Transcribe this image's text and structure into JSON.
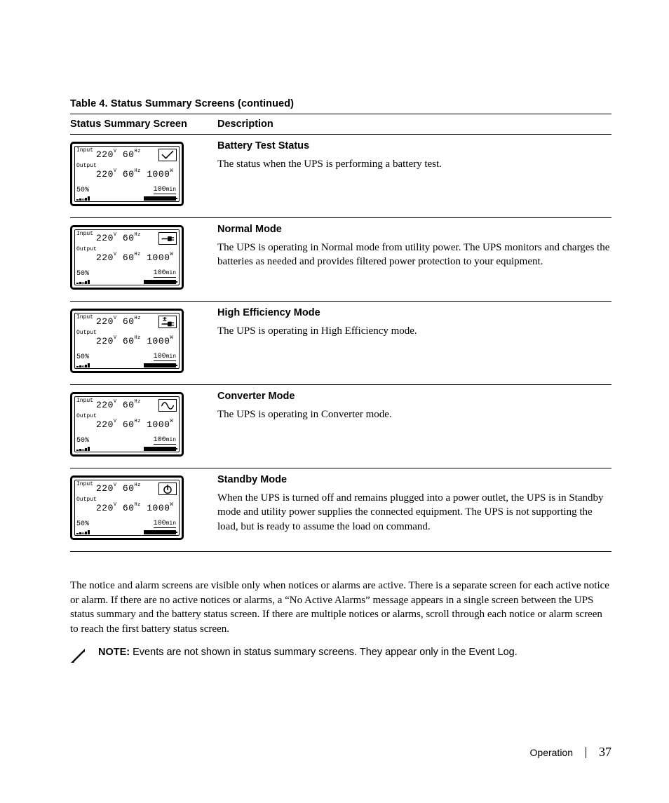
{
  "colors": {
    "text": "#000000",
    "background": "#ffffff",
    "line": "#000000"
  },
  "table": {
    "title": "Table 4. Status Summary Screens (continued)",
    "columns": {
      "screen": "Status Summary Screen",
      "desc": "Description"
    },
    "rows": [
      {
        "icon": "check",
        "title": "Battery Test Status",
        "body": "The status when the UPS is performing a battery test."
      },
      {
        "icon": "plug",
        "title": "Normal Mode",
        "body": "The UPS is operating in Normal mode from utility power. The UPS monitors and charges the batteries as needed and provides filtered power protection to your equipment."
      },
      {
        "icon": "plug-plus",
        "title": "High Efficiency Mode",
        "body": "The UPS is operating in High Efficiency mode."
      },
      {
        "icon": "sine",
        "title": "Converter Mode",
        "body": "The UPS is operating in Converter mode."
      },
      {
        "icon": "power",
        "title": "Standby Mode",
        "body": "When the UPS is turned off and remains plugged into a power outlet, the UPS is in Standby mode and utility power supplies the connected equipment. The UPS is not supporting the load, but is ready to assume the load on command."
      }
    ]
  },
  "lcd": {
    "input_label": "Input",
    "input_v": "220",
    "input_v_unit": "V",
    "input_hz": "60",
    "input_hz_unit": "Hz",
    "output_label": "Output",
    "output_v": "220",
    "output_v_unit": "V",
    "output_hz": "60",
    "output_hz_unit": "Hz",
    "output_w": "1000",
    "output_w_unit": "W",
    "pct": "50%",
    "mins": "100",
    "mins_unit": "min"
  },
  "para": "The notice and alarm screens are visible only when notices or alarms are active. There is a separate screen for each active notice or alarm. If there are no active notices or alarms, a “No Active Alarms” message appears in a single screen between the UPS status summary and the battery status screen. If there are multiple notices or alarms, scroll through each notice or alarm screen to reach the first battery status screen.",
  "note": {
    "label": "NOTE:",
    "text": " Events are not shown in status summary screens. They appear only in the Event Log."
  },
  "footer": {
    "section": "Operation",
    "page": "37"
  }
}
